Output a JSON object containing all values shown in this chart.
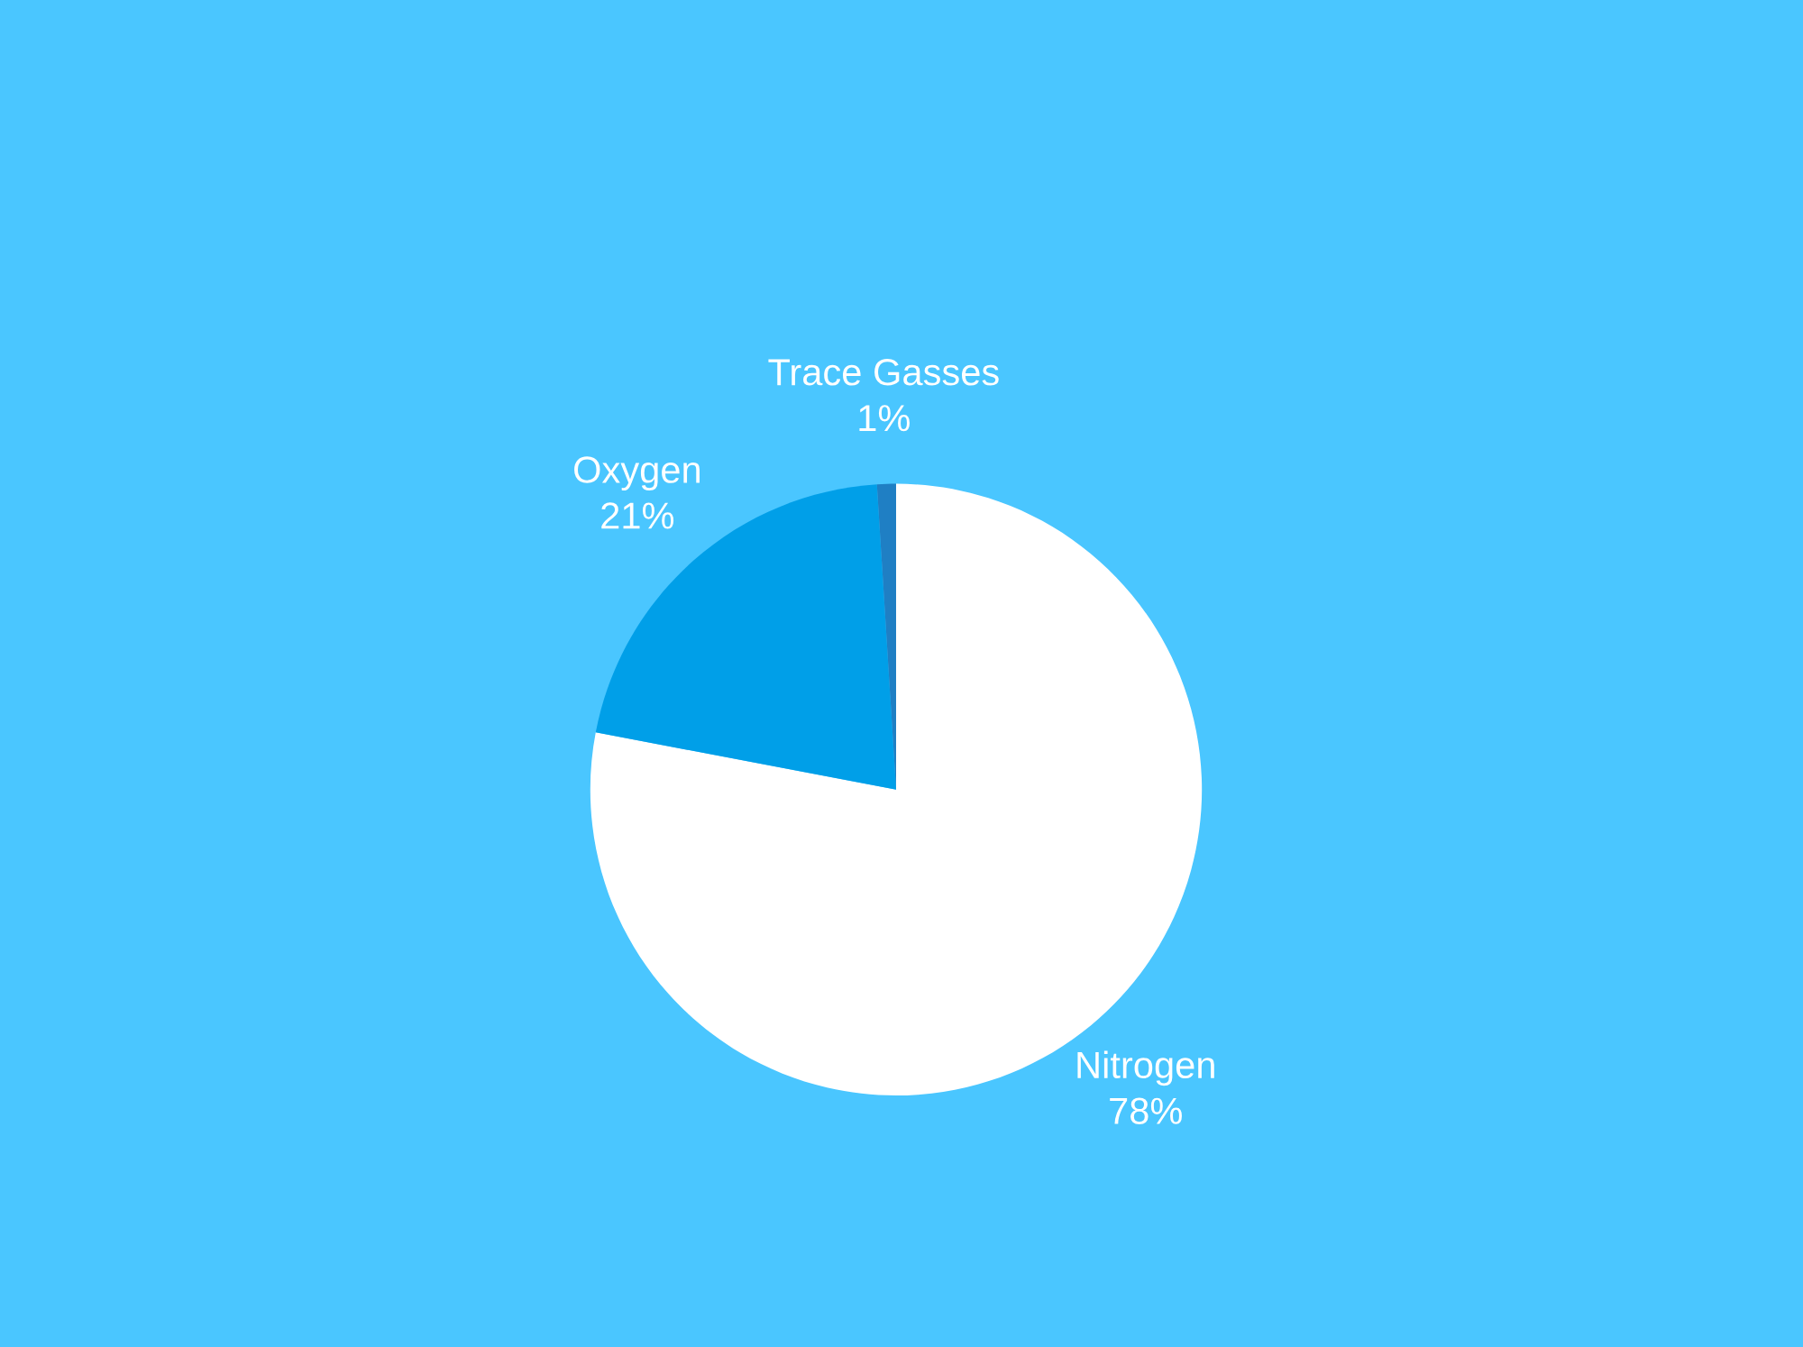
{
  "chart_data": {
    "type": "pie",
    "categories": [
      "Nitrogen",
      "Oxygen",
      "Trace Gasses"
    ],
    "values": [
      78,
      21,
      1
    ],
    "value_labels": [
      "78%",
      "21%",
      "1%"
    ],
    "colors": [
      "#ffffff",
      "#009fe8",
      "#1f7fc4"
    ],
    "legend": false
  }
}
